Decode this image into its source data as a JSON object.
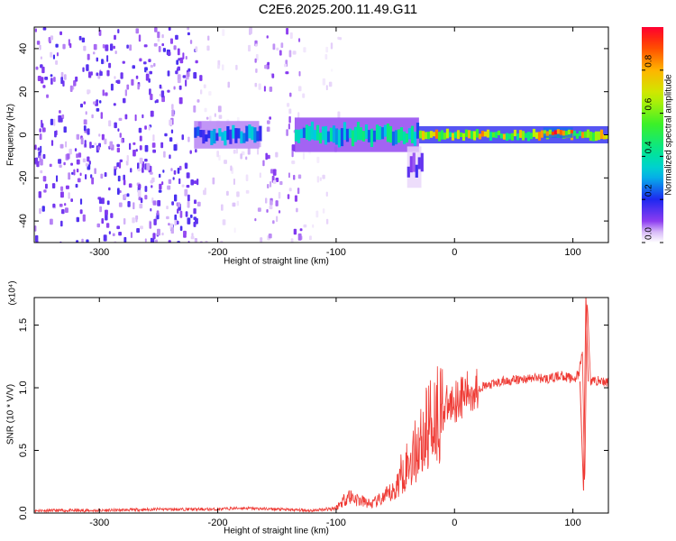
{
  "title": "C2E6.2025.200.11.49.G11",
  "chart_data": [
    {
      "type": "heatmap",
      "xlabel": "Height of straight line (km)",
      "ylabel": "Frequency (Hz)",
      "xlim": [
        -355,
        130
      ],
      "ylim": [
        -50,
        50
      ],
      "xticks": [
        -300,
        -200,
        -100,
        0,
        100
      ],
      "xtick_labels": [
        "-300",
        "-200",
        "-100",
        "0",
        "100"
      ],
      "yticks": [
        -40,
        -20,
        0,
        20,
        40
      ],
      "ytick_labels": [
        "-40",
        "-20",
        "0",
        "20",
        "40"
      ],
      "colorbar": {
        "label": "Normalized spectral amplitude",
        "range": [
          0,
          1
        ],
        "ticks": [
          0.0,
          0.2,
          0.4,
          0.6,
          0.8
        ],
        "tick_labels": [
          "0.0",
          "0.2",
          "0.4",
          "0.6",
          "0.8"
        ]
      },
      "regions": [
        {
          "x": [
            -355,
            -215
          ],
          "f": [
            -50,
            50
          ],
          "level": 0.12,
          "pattern": "scattered noise"
        },
        {
          "x": [
            -215,
            -170
          ],
          "f": [
            -50,
            50
          ],
          "level": 0.04,
          "pattern": "faint scattered noise"
        },
        {
          "x": [
            -170,
            -130
          ],
          "f": [
            -50,
            50
          ],
          "level": 0.08,
          "pattern": "scattered noise"
        },
        {
          "x": [
            -130,
            -95
          ],
          "f": [
            -50,
            50
          ],
          "level": 0.03,
          "pattern": "faint scattered noise"
        }
      ],
      "signal_band": [
        {
          "x": [
            -220,
            -165
          ],
          "f_center": 0,
          "halfwidth": 4,
          "level": 0.3
        },
        {
          "x": [
            -135,
            -30
          ],
          "f_center": 0,
          "halfwidth": 5,
          "level": 0.4
        },
        {
          "x": [
            -30,
            130
          ],
          "f_center": 0,
          "halfwidth": 2.5,
          "level": 0.75
        },
        {
          "x": [
            -40,
            -28
          ],
          "f_center": -15,
          "halfwidth": 6,
          "level": 0.15
        },
        {
          "x": [
            75,
            100
          ],
          "f_center": 1,
          "halfwidth": 1.5,
          "level": 1.0
        }
      ],
      "grid": false
    },
    {
      "type": "line",
      "xlabel": "Height of straight line (km)",
      "ylabel": "SNR (10 * V/V)",
      "yscale_label": "(x10⁴)",
      "xlim": [
        -355,
        130
      ],
      "ylim": [
        0,
        1.72
      ],
      "xticks": [
        -300,
        -200,
        -100,
        0,
        100
      ],
      "xtick_labels": [
        "-300",
        "-200",
        "-100",
        "0",
        "100"
      ],
      "yticks": [
        0.0,
        0.5,
        1.0,
        1.5
      ],
      "ytick_labels": [
        "0.0",
        "0.5",
        "1.0",
        "1.5"
      ],
      "color": "#ef3a34",
      "x": [
        -355,
        -300,
        -250,
        -200,
        -180,
        -150,
        -120,
        -100,
        -90,
        -80,
        -70,
        -60,
        -50,
        -45,
        -40,
        -35,
        -30,
        -25,
        -20,
        -15,
        -10,
        -5,
        0,
        10,
        20,
        30,
        40,
        50,
        60,
        70,
        80,
        90,
        100,
        105,
        108,
        110,
        112,
        115,
        120,
        130
      ],
      "y": [
        0.02,
        0.02,
        0.03,
        0.03,
        0.04,
        0.03,
        0.02,
        0.04,
        0.14,
        0.1,
        0.07,
        0.12,
        0.18,
        0.32,
        0.38,
        0.45,
        0.55,
        0.62,
        0.75,
        0.8,
        0.82,
        0.85,
        0.9,
        0.95,
        1.0,
        1.02,
        1.05,
        1.06,
        1.07,
        1.08,
        1.07,
        1.1,
        1.07,
        1.1,
        1.3,
        0.18,
        1.72,
        1.05,
        1.06,
        1.04
      ],
      "grid": false
    }
  ]
}
